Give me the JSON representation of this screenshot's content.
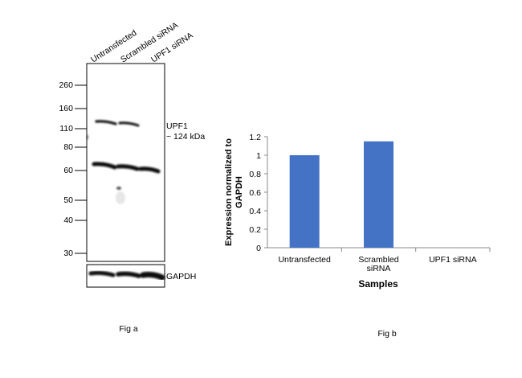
{
  "fig_a": {
    "caption": "Fig a",
    "lane_labels": [
      "Untransfected",
      "Scrambled siRNA",
      "UPF1 siRNA"
    ],
    "ladder_kda": [
      "260",
      "160",
      "110",
      "80",
      "60",
      "50",
      "40",
      "30"
    ],
    "band_label_line1": "UPF1",
    "band_label_line2": "~ 124 kDa",
    "loading_control": "GAPDH"
  },
  "fig_b": {
    "caption": "Fig b"
  },
  "chart_data": {
    "type": "bar",
    "title": "",
    "categories": [
      "Untransfected",
      "Scrambled siRNA",
      "UPF1 siRNA"
    ],
    "category_lines": [
      [
        "Untransfected"
      ],
      [
        "Scrambled",
        "siRNA"
      ],
      [
        "UPF1 siRNA"
      ]
    ],
    "values": [
      1.0,
      1.15,
      0
    ],
    "ylabel_line1": "Expression  normalized to",
    "ylabel_line2": "GAPDH",
    "xlabel": "Samples",
    "ylim": [
      0,
      1.2
    ],
    "yticks": [
      0,
      0.2,
      0.4,
      0.6,
      0.8,
      1,
      1.2
    ],
    "bar_color": "#4472c4",
    "grid": false,
    "legend": "none"
  }
}
